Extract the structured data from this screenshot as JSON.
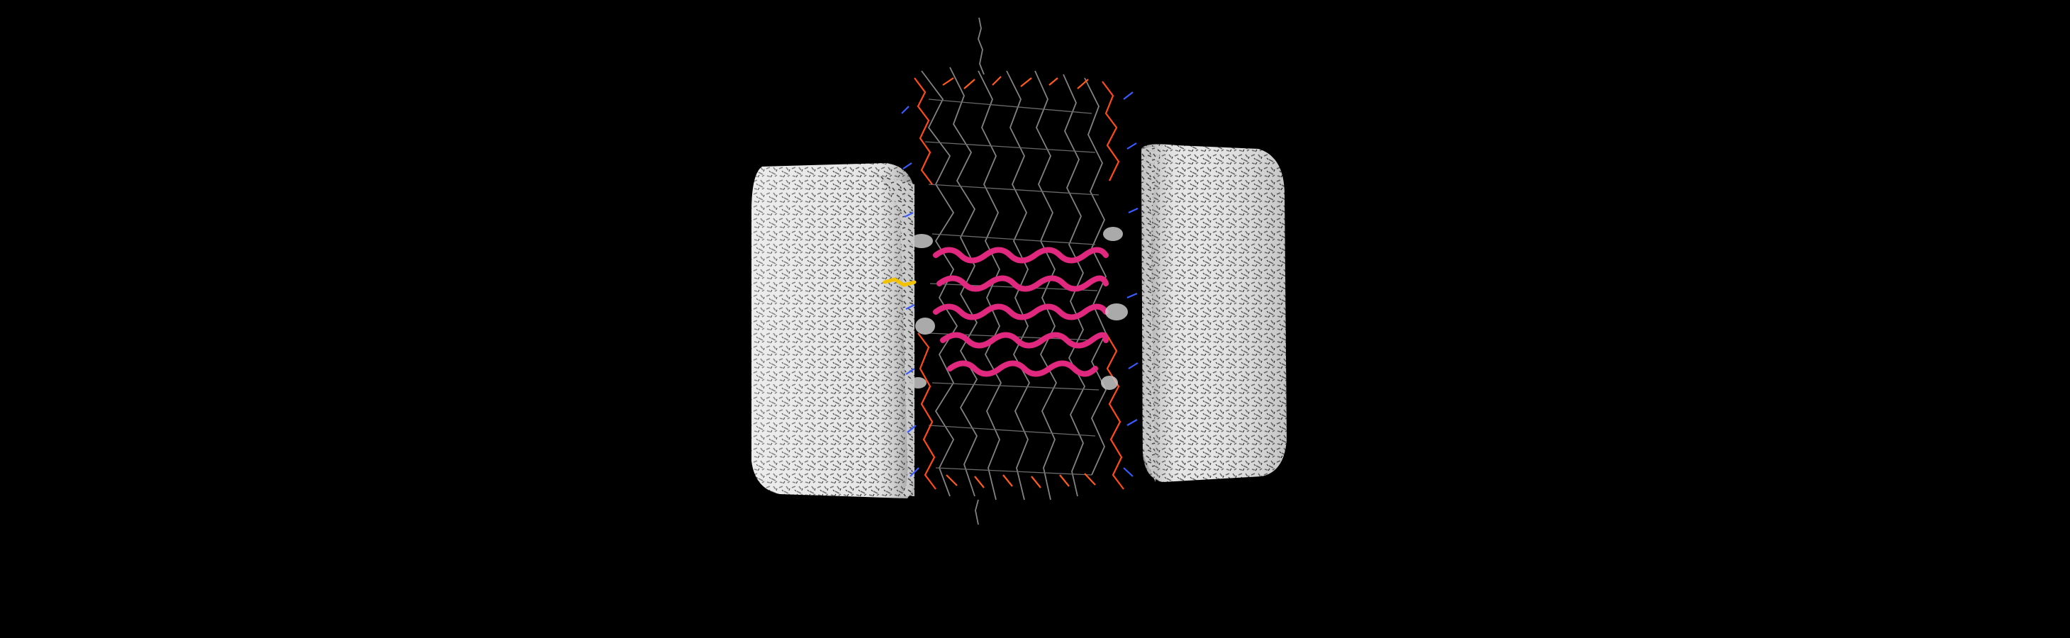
{
  "scene": {
    "background": "#000000",
    "subject": "molecular-render",
    "components": [
      {
        "name": "water-box-left",
        "color": "#dcdcdc"
      },
      {
        "name": "lipid-membrane",
        "color": "#8a8a8a"
      },
      {
        "name": "lipid-headgroups-oxygen",
        "color": "#ff4a1c"
      },
      {
        "name": "lipid-headgroups-nitrogen",
        "color": "#3a5bff"
      },
      {
        "name": "protein-helices",
        "color": "#e0287e"
      },
      {
        "name": "ligand",
        "color": "#f2c200"
      },
      {
        "name": "water-box-right",
        "color": "#dcdcdc"
      }
    ]
  }
}
